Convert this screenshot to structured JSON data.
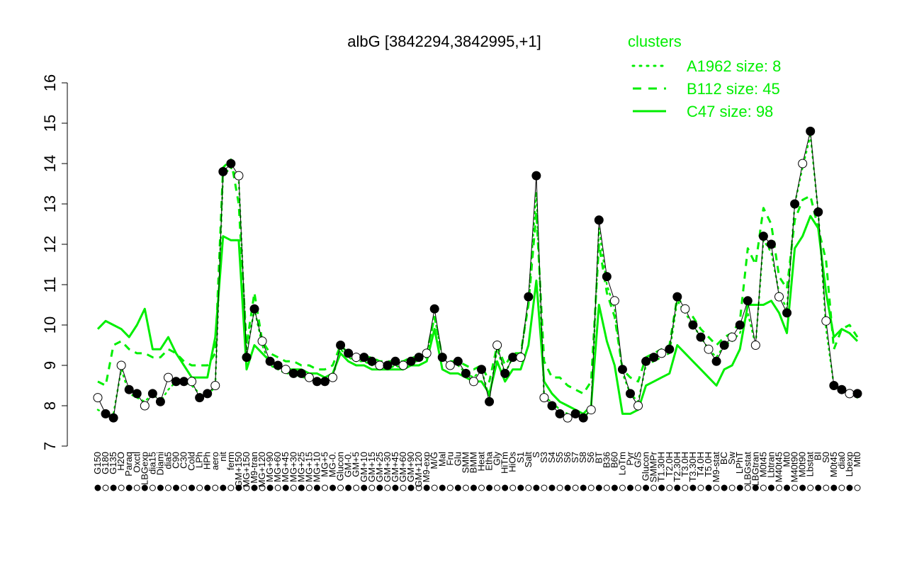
{
  "chart_data": {
    "type": "line",
    "title": "albG [3842294,3842995,+1]",
    "xlabel": "",
    "ylabel": "",
    "ylim": [
      7,
      16
    ],
    "yticks": [
      7,
      8,
      9,
      10,
      11,
      12,
      13,
      14,
      15,
      16
    ],
    "grid": false,
    "legend_position": "top-right",
    "legend_title": "clusters",
    "x_tick_labels": [
      "G150",
      "G180",
      "G135",
      "H2O2",
      "Paraq",
      "Oxctl",
      "LBGexp",
      "dia15",
      "Diami",
      "dia5",
      "C90",
      "C30",
      "Cold",
      "LPh",
      "HPh",
      "aero",
      "nit",
      "ferm",
      "GM+150",
      "MG+150",
      "M9-tran",
      "MG+120",
      "MG+90",
      "MG+60",
      "MG+45",
      "MG+30",
      "MG+25",
      "MG+15",
      "MG+10",
      "MG+5",
      "MG-0.2",
      "Glucon",
      "GM-0.2",
      "GM+5",
      "GM+10",
      "GM+15",
      "GM+25",
      "GM+30",
      "GM+45",
      "GM+60",
      "GM+90",
      "GM+120",
      "M9-exp",
      "M/G",
      "Mal",
      "Fru",
      "Glu",
      "SMM",
      "BMM",
      "Heat",
      "Etha",
      "Gly",
      "HiTm",
      "HiOs",
      "S1",
      "Salt",
      "S2",
      "S3",
      "S4",
      "S5",
      "S6",
      "S7",
      "S8",
      "S6b",
      "BT",
      "B36",
      "B60",
      "LoTm",
      "Pyr",
      "G/S",
      "Glucon2",
      "SMMPr",
      "T1.30H",
      "T2.0H",
      "T2.30H",
      "T3.0H",
      "T3.30H",
      "T4.0H",
      "T5.0H",
      "M9-stat",
      "BC",
      "Sw",
      "LPhT",
      "LBGstat",
      "LBGtran",
      "M0t45",
      "Lbtran",
      "M40t45",
      "Mt0",
      "M40t90",
      "M0t90",
      "Lbstat",
      "BI",
      "S0",
      "M0t45b",
      "dia0",
      "Lbexp",
      "Mt0b"
    ],
    "series": [
      {
        "name": "A1962 size: 8",
        "style": "dotted",
        "color": "#00ee00",
        "values": [
          7.9,
          7.8,
          7.8,
          8.9,
          8.3,
          8.2,
          8.1,
          8.3,
          8.1,
          8.4,
          8.6,
          8.6,
          8.5,
          8.3,
          8.2,
          8.5,
          13.7,
          13.9,
          13.6,
          9.3,
          10.4,
          9.5,
          9.0,
          8.9,
          8.8,
          8.8,
          8.7,
          8.7,
          8.6,
          8.6,
          8.7,
          9.4,
          9.2,
          9.1,
          9.1,
          9.0,
          9.0,
          8.9,
          9.0,
          8.9,
          9.1,
          9.1,
          9.2,
          10.2,
          9.2,
          9.0,
          9.0,
          8.8,
          8.7,
          8.9,
          8.2,
          9.4,
          8.8,
          9.2,
          9.2,
          10.6,
          13.3,
          8.2,
          8.1,
          7.9,
          7.8,
          7.8,
          7.7,
          7.9,
          12.4,
          11.0,
          10.4,
          8.8,
          8.3,
          8.1,
          9.0,
          9.1,
          9.2,
          9.3,
          10.6,
          10.3,
          10.0,
          9.7,
          9.4,
          9.2,
          9.5,
          9.6,
          9.8,
          10.3,
          9.5,
          12.1,
          11.8,
          10.8,
          10.4,
          13.0,
          13.9,
          14.7,
          12.8,
          9.9,
          8.5,
          8.4,
          8.3,
          8.2
        ]
      },
      {
        "name": "B112 size: 45",
        "style": "dashed",
        "color": "#00ee00",
        "values": [
          8.6,
          8.5,
          9.5,
          9.6,
          9.4,
          9.3,
          9.3,
          9.2,
          9.2,
          9.4,
          9.3,
          9.1,
          9.0,
          9.0,
          9.0,
          9.3,
          13.9,
          14.1,
          13.0,
          9.5,
          10.8,
          9.6,
          9.3,
          9.2,
          9.1,
          9.1,
          9.0,
          9.0,
          8.9,
          8.9,
          9.0,
          9.5,
          9.3,
          9.2,
          9.2,
          9.2,
          9.1,
          9.1,
          9.1,
          9.1,
          9.2,
          9.2,
          9.3,
          10.2,
          9.2,
          9.1,
          9.1,
          9.0,
          8.9,
          9.0,
          8.6,
          9.5,
          9.0,
          9.3,
          9.3,
          10.5,
          12.8,
          9.1,
          8.7,
          8.7,
          8.5,
          8.4,
          8.3,
          8.6,
          12.0,
          10.8,
          10.2,
          8.9,
          8.7,
          8.6,
          9.2,
          9.3,
          9.4,
          9.5,
          10.7,
          10.4,
          10.2,
          9.9,
          9.7,
          9.5,
          9.7,
          9.8,
          10.1,
          11.9,
          11.5,
          12.9,
          12.5,
          11.2,
          10.9,
          12.6,
          13.1,
          13.2,
          12.4,
          11.6,
          9.4,
          9.9,
          10.0,
          9.7
        ]
      },
      {
        "name": "C47 size: 98",
        "style": "solid",
        "color": "#00ee00",
        "values": [
          9.9,
          10.1,
          10.0,
          9.9,
          9.7,
          10.0,
          10.4,
          9.4,
          9.4,
          9.7,
          9.3,
          9.0,
          8.7,
          8.7,
          8.7,
          9.7,
          12.2,
          12.1,
          12.1,
          8.9,
          9.5,
          9.3,
          9.1,
          9.0,
          8.9,
          8.9,
          8.9,
          8.8,
          8.8,
          8.7,
          8.8,
          9.3,
          9.1,
          9.0,
          9.0,
          8.9,
          8.9,
          8.9,
          8.9,
          8.9,
          9.0,
          9.0,
          9.1,
          9.9,
          8.9,
          8.8,
          8.8,
          8.7,
          8.6,
          8.6,
          8.3,
          9.1,
          8.6,
          8.9,
          8.9,
          9.5,
          11.1,
          8.6,
          8.3,
          8.1,
          8.0,
          7.9,
          7.8,
          8.0,
          10.5,
          9.6,
          9.0,
          7.8,
          7.8,
          7.9,
          8.5,
          8.6,
          8.7,
          8.8,
          9.5,
          9.3,
          9.1,
          8.9,
          8.7,
          8.5,
          8.9,
          9.0,
          9.4,
          10.5,
          10.5,
          10.5,
          10.6,
          10.3,
          9.8,
          11.9,
          12.2,
          12.7,
          12.4,
          10.8,
          9.7,
          9.9,
          9.8,
          9.6
        ]
      },
      {
        "name": "albG",
        "style": "points",
        "color": "#000000",
        "values": [
          8.2,
          7.8,
          7.7,
          9.0,
          8.4,
          8.3,
          8.0,
          8.3,
          8.1,
          8.7,
          8.6,
          8.6,
          8.6,
          8.2,
          8.3,
          8.5,
          13.8,
          14.0,
          13.7,
          9.2,
          10.4,
          9.6,
          9.1,
          9.0,
          8.9,
          8.8,
          8.8,
          8.7,
          8.6,
          8.6,
          8.7,
          9.5,
          9.3,
          9.2,
          9.2,
          9.1,
          9.0,
          9.0,
          9.1,
          9.0,
          9.1,
          9.2,
          9.3,
          10.4,
          9.2,
          9.0,
          9.1,
          8.8,
          8.6,
          8.9,
          8.1,
          9.5,
          8.8,
          9.2,
          9.2,
          10.7,
          13.7,
          8.2,
          8.0,
          7.8,
          7.7,
          7.8,
          7.7,
          7.9,
          12.6,
          11.2,
          10.6,
          8.9,
          8.3,
          8.0,
          9.1,
          9.2,
          9.3,
          9.4,
          10.7,
          10.4,
          10.0,
          9.7,
          9.4,
          9.1,
          9.5,
          9.7,
          10.0,
          10.6,
          9.5,
          12.2,
          12.0,
          10.7,
          10.3,
          13.0,
          14.0,
          14.8,
          12.8,
          10.1,
          8.5,
          8.4,
          8.3,
          8.3
        ]
      }
    ]
  }
}
